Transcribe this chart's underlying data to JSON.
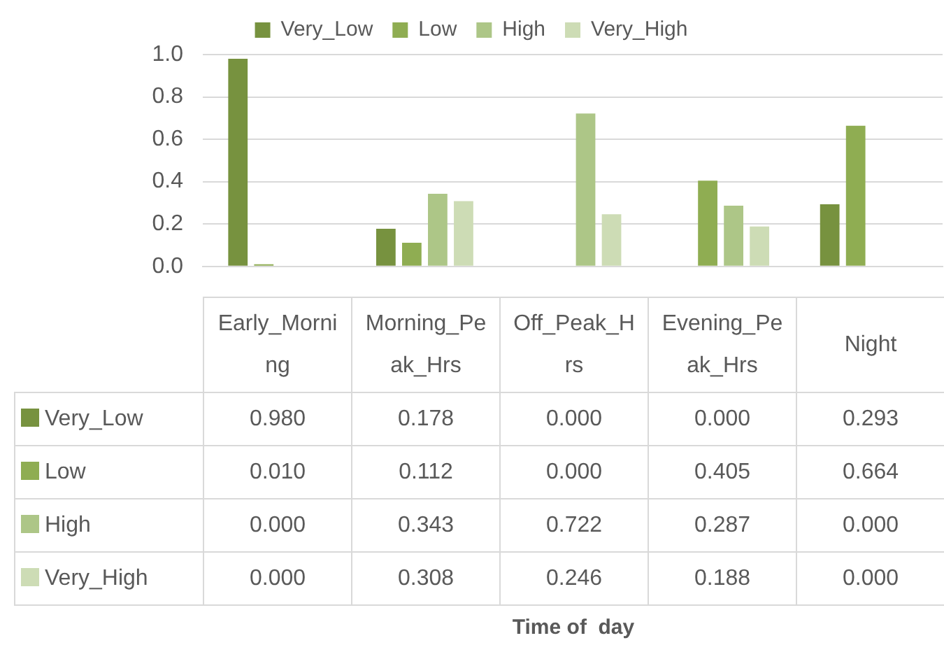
{
  "chart_data": {
    "type": "bar",
    "annotations": [
      "Time of  day"
    ],
    "categories": [
      "Early_Morning",
      "Morning_Peak_Hrs",
      "Off_Peak_Hrs",
      "Evening_Peak_Hrs",
      "Night"
    ],
    "series": [
      {
        "name": "Very_Low",
        "color": "#77923f",
        "values": [
          0.98,
          0.178,
          0.0,
          0.0,
          0.293
        ],
        "value_labels": [
          "0.980",
          "0.178",
          "0.000",
          "0.000",
          "0.293"
        ]
      },
      {
        "name": "Low",
        "color": "#8fad52",
        "values": [
          0.01,
          0.112,
          0.0,
          0.405,
          0.664
        ],
        "value_labels": [
          "0.010",
          "0.112",
          "0.000",
          "0.405",
          "0.664"
        ]
      },
      {
        "name": "High",
        "color": "#adc687",
        "values": [
          0.0,
          0.343,
          0.722,
          0.287,
          0.0
        ],
        "value_labels": [
          "0.000",
          "0.343",
          "0.722",
          "0.287",
          "0.000"
        ]
      },
      {
        "name": "Very_High",
        "color": "#cddcb5",
        "values": [
          0.0,
          0.308,
          0.246,
          0.188,
          0.0
        ],
        "value_labels": [
          "0.000",
          "0.308",
          "0.246",
          "0.188",
          "0.000"
        ]
      }
    ],
    "ylim": [
      0,
      1
    ],
    "yticks": [
      {
        "value": 0,
        "label": "0.0"
      },
      {
        "value": 0.2,
        "label": "0.2"
      },
      {
        "value": 0.4,
        "label": "0.4"
      },
      {
        "value": 0.6,
        "label": "0.6"
      },
      {
        "value": 0.8,
        "label": "0.8"
      },
      {
        "value": 1,
        "label": "1.0"
      }
    ],
    "grid": "y",
    "legend": "top"
  }
}
